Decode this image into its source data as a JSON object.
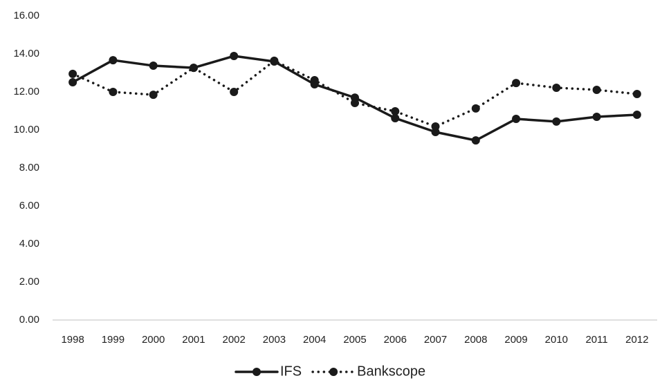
{
  "chart_data": {
    "type": "line",
    "categories": [
      "1998",
      "1999",
      "2000",
      "2001",
      "2002",
      "2003",
      "2004",
      "2005",
      "2006",
      "2007",
      "2008",
      "2009",
      "2010",
      "2011",
      "2012"
    ],
    "series": [
      {
        "name": "IFS",
        "color": "#1a1a1a",
        "style": "solid",
        "values": [
          12.51,
          13.67,
          13.38,
          13.27,
          13.89,
          13.6,
          12.4,
          11.7,
          10.62,
          9.89,
          9.45,
          10.58,
          10.44,
          10.69,
          10.8
        ]
      },
      {
        "name": "Bankscope",
        "color": "#1a1a1a",
        "style": "dotted",
        "values": [
          12.95,
          12.0,
          11.85,
          13.27,
          12.0,
          13.64,
          12.62,
          11.42,
          10.98,
          10.18,
          11.13,
          12.47,
          12.22,
          12.11,
          11.89
        ]
      }
    ],
    "ylim": [
      0,
      16
    ],
    "yticks": [
      {
        "value": 0,
        "label": "0.00"
      },
      {
        "value": 2,
        "label": "2.00"
      },
      {
        "value": 4,
        "label": "4.00"
      },
      {
        "value": 6,
        "label": "6.00"
      },
      {
        "value": 8,
        "label": "8.00"
      },
      {
        "value": 10,
        "label": "10.00"
      },
      {
        "value": 12,
        "label": "12.00"
      },
      {
        "value": 14,
        "label": "14.00"
      },
      {
        "value": 16,
        "label": "16.00"
      }
    ],
    "grid": false,
    "legend": "bottom"
  }
}
